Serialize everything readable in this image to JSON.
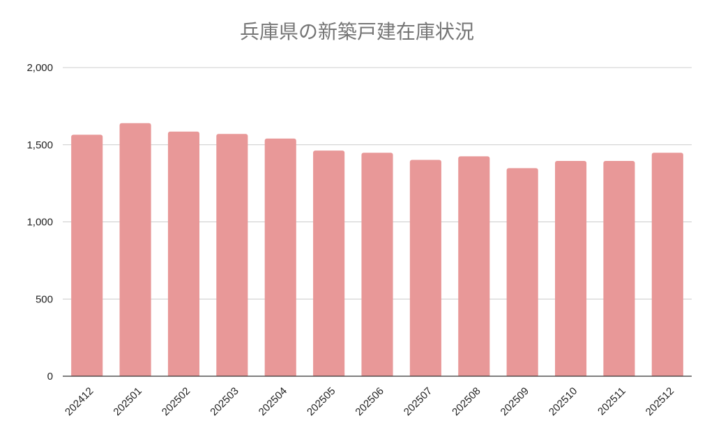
{
  "chart_data": {
    "type": "bar",
    "title": "兵庫県の新築戸建在庫状況",
    "xlabel": "",
    "ylabel": "",
    "categories": [
      "202412",
      "202501",
      "202502",
      "202503",
      "202504",
      "202505",
      "202506",
      "202507",
      "202508",
      "202509",
      "202510",
      "202511",
      "202512"
    ],
    "values": [
      1565,
      1640,
      1585,
      1570,
      1540,
      1462,
      1448,
      1402,
      1425,
      1348,
      1395,
      1395,
      1448
    ],
    "ylim": [
      0,
      2000
    ],
    "yticks": [
      0,
      500,
      1000,
      1500,
      2000
    ],
    "ytick_labels": [
      "0",
      "500",
      "1,000",
      "1,500",
      "2,000"
    ],
    "grid": true,
    "legend": "none",
    "bar_color": "#e89898",
    "grid_color": "#cccccc"
  }
}
